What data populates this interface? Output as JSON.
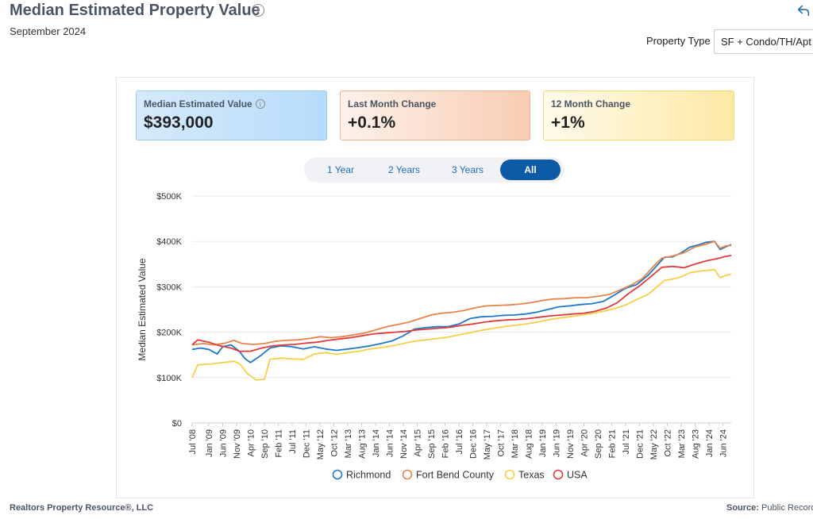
{
  "header": {
    "title": "Median Estimated Property Value",
    "subtitle": "September 2024",
    "property_type_label": "Property Type",
    "property_type_value": "SF + Condo/TH/Apt"
  },
  "cards": [
    {
      "label": "Median Estimated Value",
      "value": "$393,000"
    },
    {
      "label": "Last Month Change",
      "value": "+0.1%"
    },
    {
      "label": "12 Month Change",
      "value": "+1%"
    }
  ],
  "tabs": [
    {
      "label": "1 Year",
      "active": false
    },
    {
      "label": "2 Years",
      "active": false
    },
    {
      "label": "3 Years",
      "active": false
    },
    {
      "label": "All",
      "active": true
    }
  ],
  "footer": {
    "left": "Realtors Property Resource®, LLC",
    "right_label": "Source:",
    "right_value": "Public Records"
  },
  "chart_data": {
    "type": "line",
    "ylabel": "Median Estimated Value",
    "ylim": [
      0,
      500000
    ],
    "yticks": [
      {
        "v": 0,
        "label": "$0"
      },
      {
        "v": 100000,
        "label": "$100K"
      },
      {
        "v": 200000,
        "label": "$200K"
      },
      {
        "v": 300000,
        "label": "$300K"
      },
      {
        "v": 400000,
        "label": "$400K"
      },
      {
        "v": 500000,
        "label": "$500K"
      }
    ],
    "x_start": "2008-07",
    "x_end": "2024-09",
    "xticks": [
      "Jul '08",
      "Jan '09",
      "Jun '09",
      "Nov '09",
      "Apr '10",
      "Sep '10",
      "Feb '11",
      "Jul '11",
      "Dec '11",
      "May '12",
      "Oct '12",
      "Mar '13",
      "Aug '13",
      "Jan '14",
      "Jun '14",
      "Nov '14",
      "Apr '15",
      "Sep '15",
      "Feb '16",
      "Jul '16",
      "Dec '16",
      "May '17",
      "Oct '17",
      "Mar '18",
      "Aug '18",
      "Jan '19",
      "Jun '19",
      "Nov '19",
      "Apr '20",
      "Sep '20",
      "Feb '21",
      "Jul '21",
      "Dec '21",
      "May '22",
      "Oct '22",
      "Mar '23",
      "Aug '23",
      "Jan '24",
      "Jun '24"
    ],
    "grid": true,
    "legend": "bottom",
    "series": [
      {
        "name": "Richmond",
        "color": "#1f78c8",
        "points": [
          [
            "2008-07",
            162000
          ],
          [
            "2008-10",
            165000
          ],
          [
            "2009-01",
            162000
          ],
          [
            "2009-04",
            152000
          ],
          [
            "2009-06",
            168000
          ],
          [
            "2009-09",
            172000
          ],
          [
            "2009-12",
            158000
          ],
          [
            "2010-02",
            142000
          ],
          [
            "2010-04",
            133000
          ],
          [
            "2010-08",
            150000
          ],
          [
            "2010-11",
            165000
          ],
          [
            "2011-03",
            170000
          ],
          [
            "2011-07",
            168000
          ],
          [
            "2011-11",
            163000
          ],
          [
            "2012-03",
            168000
          ],
          [
            "2012-07",
            163000
          ],
          [
            "2012-11",
            160000
          ],
          [
            "2013-03",
            163000
          ],
          [
            "2013-07",
            166000
          ],
          [
            "2013-11",
            170000
          ],
          [
            "2014-03",
            175000
          ],
          [
            "2014-07",
            181000
          ],
          [
            "2014-11",
            192000
          ],
          [
            "2015-03",
            207000
          ],
          [
            "2015-07",
            210000
          ],
          [
            "2015-11",
            212000
          ],
          [
            "2016-03",
            212000
          ],
          [
            "2016-07",
            218000
          ],
          [
            "2016-11",
            230000
          ],
          [
            "2017-03",
            234000
          ],
          [
            "2017-07",
            235000
          ],
          [
            "2017-11",
            237000
          ],
          [
            "2018-03",
            238000
          ],
          [
            "2018-07",
            240000
          ],
          [
            "2018-11",
            244000
          ],
          [
            "2019-03",
            250000
          ],
          [
            "2019-07",
            256000
          ],
          [
            "2019-11",
            258000
          ],
          [
            "2020-03",
            261000
          ],
          [
            "2020-07",
            263000
          ],
          [
            "2020-11",
            268000
          ],
          [
            "2021-03",
            282000
          ],
          [
            "2021-07",
            297000
          ],
          [
            "2021-11",
            305000
          ],
          [
            "2022-03",
            325000
          ],
          [
            "2022-06",
            345000
          ],
          [
            "2022-09",
            365000
          ],
          [
            "2022-12",
            366000
          ],
          [
            "2023-03",
            375000
          ],
          [
            "2023-06",
            387000
          ],
          [
            "2023-09",
            392000
          ],
          [
            "2023-12",
            398000
          ],
          [
            "2024-03",
            400000
          ],
          [
            "2024-05",
            382000
          ],
          [
            "2024-07",
            388000
          ],
          [
            "2024-09",
            393000
          ]
        ]
      },
      {
        "name": "Fort Bend County",
        "color": "#e6844a",
        "points": [
          [
            "2008-07",
            172000
          ],
          [
            "2008-11",
            175000
          ],
          [
            "2009-03",
            172000
          ],
          [
            "2009-07",
            176000
          ],
          [
            "2009-10",
            182000
          ],
          [
            "2010-01",
            175000
          ],
          [
            "2010-05",
            173000
          ],
          [
            "2010-09",
            175000
          ],
          [
            "2011-01",
            180000
          ],
          [
            "2011-05",
            182000
          ],
          [
            "2011-09",
            183000
          ],
          [
            "2012-01",
            186000
          ],
          [
            "2012-05",
            190000
          ],
          [
            "2012-09",
            188000
          ],
          [
            "2013-01",
            190000
          ],
          [
            "2013-05",
            194000
          ],
          [
            "2013-09",
            198000
          ],
          [
            "2014-01",
            205000
          ],
          [
            "2014-05",
            212000
          ],
          [
            "2014-09",
            217000
          ],
          [
            "2015-01",
            222000
          ],
          [
            "2015-05",
            230000
          ],
          [
            "2015-09",
            238000
          ],
          [
            "2016-01",
            242000
          ],
          [
            "2016-05",
            244000
          ],
          [
            "2016-09",
            248000
          ],
          [
            "2017-01",
            254000
          ],
          [
            "2017-05",
            258000
          ],
          [
            "2017-09",
            259000
          ],
          [
            "2018-01",
            260000
          ],
          [
            "2018-05",
            262000
          ],
          [
            "2018-09",
            265000
          ],
          [
            "2019-01",
            270000
          ],
          [
            "2019-05",
            273000
          ],
          [
            "2019-09",
            274000
          ],
          [
            "2020-01",
            276000
          ],
          [
            "2020-05",
            276000
          ],
          [
            "2020-09",
            279000
          ],
          [
            "2021-01",
            283000
          ],
          [
            "2021-05",
            293000
          ],
          [
            "2021-09",
            304000
          ],
          [
            "2022-01",
            318000
          ],
          [
            "2022-05",
            345000
          ],
          [
            "2022-08",
            363000
          ],
          [
            "2022-12",
            368000
          ],
          [
            "2023-04",
            375000
          ],
          [
            "2023-08",
            388000
          ],
          [
            "2023-12",
            394000
          ],
          [
            "2024-03",
            400000
          ],
          [
            "2024-05",
            385000
          ],
          [
            "2024-07",
            390000
          ],
          [
            "2024-09",
            391000
          ]
        ]
      },
      {
        "name": "Texas",
        "color": "#f5cf45",
        "points": [
          [
            "2008-07",
            100000
          ],
          [
            "2008-09",
            128000
          ],
          [
            "2009-02",
            130000
          ],
          [
            "2009-06",
            133000
          ],
          [
            "2009-10",
            136000
          ],
          [
            "2009-12",
            131000
          ],
          [
            "2010-03",
            108000
          ],
          [
            "2010-06",
            95000
          ],
          [
            "2010-09",
            96000
          ],
          [
            "2010-11",
            140000
          ],
          [
            "2011-03",
            143000
          ],
          [
            "2011-07",
            141000
          ],
          [
            "2011-11",
            140000
          ],
          [
            "2012-03",
            152000
          ],
          [
            "2012-07",
            155000
          ],
          [
            "2012-11",
            151000
          ],
          [
            "2013-03",
            155000
          ],
          [
            "2013-07",
            158000
          ],
          [
            "2013-11",
            163000
          ],
          [
            "2014-03",
            166000
          ],
          [
            "2014-07",
            170000
          ],
          [
            "2014-11",
            175000
          ],
          [
            "2015-03",
            180000
          ],
          [
            "2015-07",
            183000
          ],
          [
            "2015-11",
            186000
          ],
          [
            "2016-03",
            189000
          ],
          [
            "2016-07",
            194000
          ],
          [
            "2016-11",
            199000
          ],
          [
            "2017-03",
            204000
          ],
          [
            "2017-07",
            208000
          ],
          [
            "2017-11",
            212000
          ],
          [
            "2018-03",
            215000
          ],
          [
            "2018-07",
            218000
          ],
          [
            "2018-11",
            222000
          ],
          [
            "2019-03",
            227000
          ],
          [
            "2019-07",
            231000
          ],
          [
            "2019-11",
            234000
          ],
          [
            "2020-03",
            238000
          ],
          [
            "2020-07",
            241000
          ],
          [
            "2020-11",
            246000
          ],
          [
            "2021-03",
            252000
          ],
          [
            "2021-07",
            260000
          ],
          [
            "2021-11",
            272000
          ],
          [
            "2022-03",
            283000
          ],
          [
            "2022-06",
            298000
          ],
          [
            "2022-09",
            314000
          ],
          [
            "2022-12",
            317000
          ],
          [
            "2023-03",
            322000
          ],
          [
            "2023-06",
            331000
          ],
          [
            "2023-09",
            334000
          ],
          [
            "2023-12",
            336000
          ],
          [
            "2024-03",
            338000
          ],
          [
            "2024-05",
            320000
          ],
          [
            "2024-07",
            325000
          ],
          [
            "2024-09",
            328000
          ]
        ]
      },
      {
        "name": "USA",
        "color": "#e23b3b",
        "points": [
          [
            "2008-07",
            172000
          ],
          [
            "2008-09",
            183000
          ],
          [
            "2009-01",
            178000
          ],
          [
            "2009-05",
            170000
          ],
          [
            "2009-09",
            165000
          ],
          [
            "2009-12",
            158000
          ],
          [
            "2010-04",
            158000
          ],
          [
            "2010-08",
            165000
          ],
          [
            "2010-12",
            170000
          ],
          [
            "2011-04",
            172000
          ],
          [
            "2011-08",
            173000
          ],
          [
            "2011-12",
            176000
          ],
          [
            "2012-04",
            178000
          ],
          [
            "2012-08",
            182000
          ],
          [
            "2012-12",
            185000
          ],
          [
            "2013-04",
            188000
          ],
          [
            "2013-08",
            192000
          ],
          [
            "2013-12",
            196000
          ],
          [
            "2014-04",
            198000
          ],
          [
            "2014-08",
            200000
          ],
          [
            "2014-12",
            202000
          ],
          [
            "2015-04",
            205000
          ],
          [
            "2015-08",
            207000
          ],
          [
            "2015-12",
            209000
          ],
          [
            "2016-04",
            211000
          ],
          [
            "2016-08",
            215000
          ],
          [
            "2016-12",
            218000
          ],
          [
            "2017-04",
            222000
          ],
          [
            "2017-08",
            225000
          ],
          [
            "2017-12",
            227000
          ],
          [
            "2018-04",
            228000
          ],
          [
            "2018-08",
            230000
          ],
          [
            "2018-12",
            233000
          ],
          [
            "2019-04",
            236000
          ],
          [
            "2019-08",
            238000
          ],
          [
            "2019-12",
            240000
          ],
          [
            "2020-04",
            242000
          ],
          [
            "2020-08",
            246000
          ],
          [
            "2020-12",
            253000
          ],
          [
            "2021-04",
            265000
          ],
          [
            "2021-08",
            285000
          ],
          [
            "2021-12",
            302000
          ],
          [
            "2022-04",
            322000
          ],
          [
            "2022-08",
            343000
          ],
          [
            "2022-12",
            345000
          ],
          [
            "2023-04",
            342000
          ],
          [
            "2023-08",
            350000
          ],
          [
            "2023-12",
            357000
          ],
          [
            "2024-04",
            362000
          ],
          [
            "2024-07",
            367000
          ],
          [
            "2024-09",
            369000
          ]
        ]
      }
    ]
  }
}
